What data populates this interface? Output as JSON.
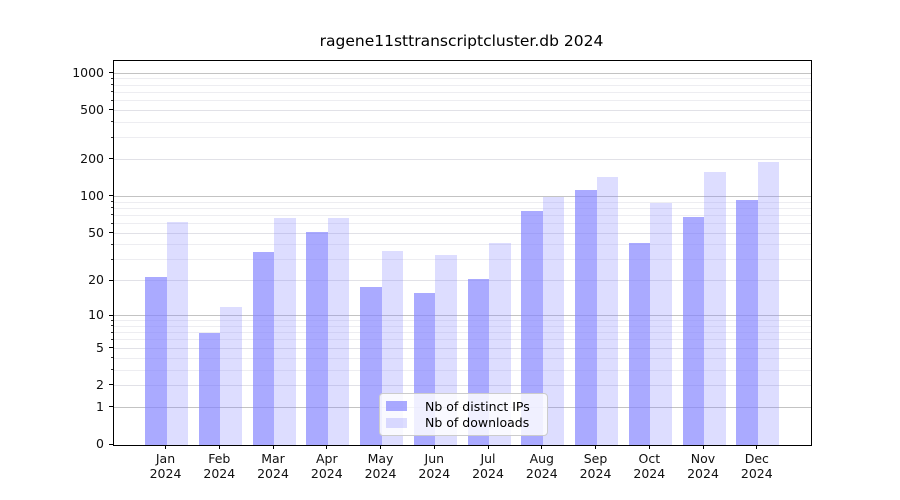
{
  "page": {
    "background": "#ffffff"
  },
  "chart_data": {
    "type": "bar",
    "title": "ragene11sttranscriptcluster.db 2024",
    "year_label": "2024",
    "categories": [
      "Jan",
      "Feb",
      "Mar",
      "Apr",
      "May",
      "Jun",
      "Jul",
      "Aug",
      "Sep",
      "Oct",
      "Nov",
      "Dec"
    ],
    "series": [
      {
        "name": "Nb of distinct IPs",
        "values": [
          22,
          7,
          35,
          52,
          18,
          16,
          21,
          77,
          114,
          42,
          68,
          95
        ],
        "color": "rgba(130,130,255,0.68)"
      },
      {
        "name": "Nb of downloads",
        "values": [
          62,
          12,
          67,
          67,
          36,
          33,
          42,
          100,
          145,
          90,
          160,
          193
        ],
        "color": "rgba(130,130,255,0.27)"
      }
    ],
    "yticks": [
      0,
      1,
      2,
      5,
      10,
      20,
      50,
      100,
      200,
      500,
      1000
    ],
    "scale": "log10(1+y)",
    "ylim": [
      0,
      1265
    ],
    "grid": true,
    "legend_position": "lower center",
    "xlabel": "",
    "ylabel": ""
  },
  "colors": {
    "bar_base": "#8282ff",
    "grid_major": "#c3c3c3",
    "grid_mid": "#e1e1e7",
    "grid_minor": "#ededf1",
    "axis": "#000000",
    "legend_border": "#cccccc"
  }
}
